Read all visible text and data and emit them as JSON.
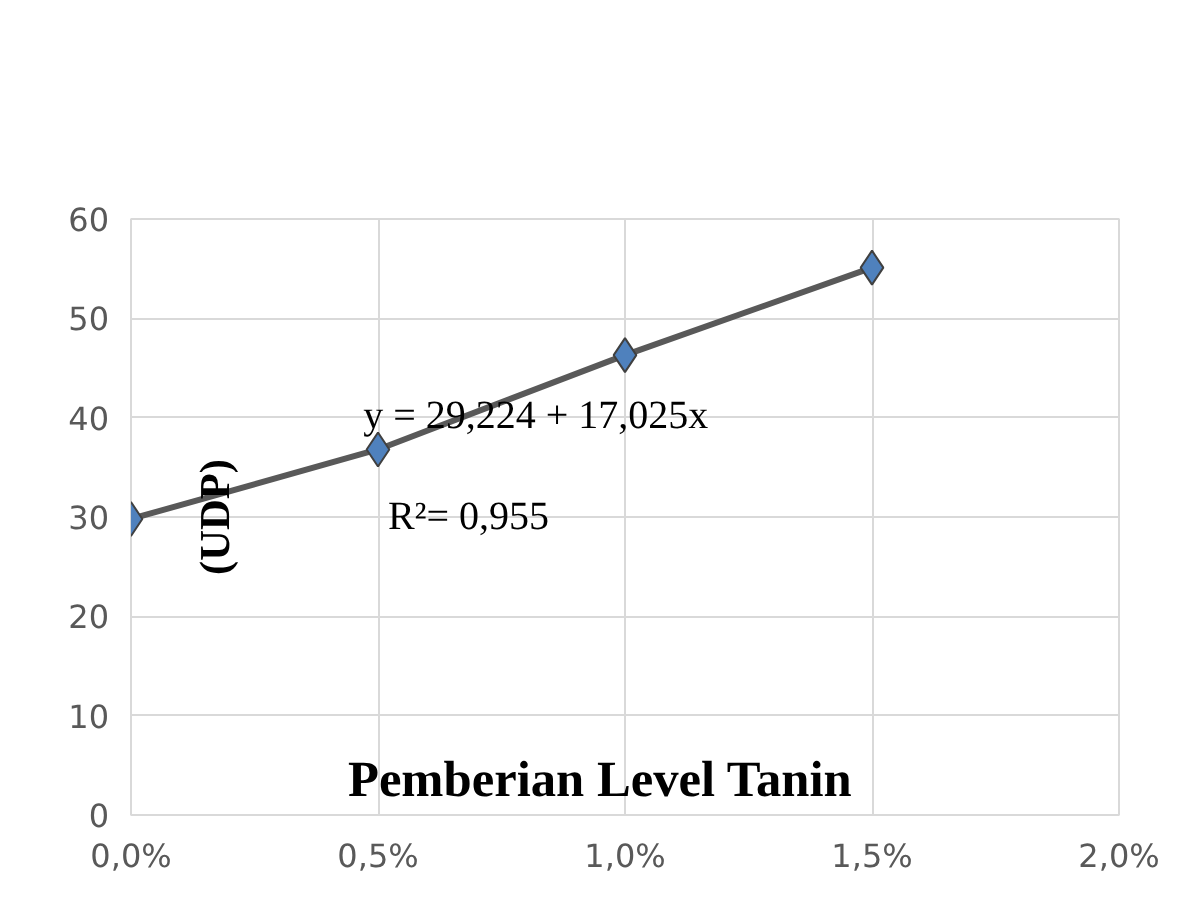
{
  "chart_data": {
    "type": "line",
    "xlabel": "Pemberian Level Tanin",
    "ylabel": "(UDP)",
    "x": [
      0,
      0.005,
      0.01,
      0.015
    ],
    "series": [
      {
        "color": "#4f81bd",
        "values": [
          29.8,
          36.8,
          46.3,
          55.1
        ]
      }
    ],
    "xlim": [
      0,
      0.02
    ],
    "xticks": [
      {
        "value": 0,
        "label": "0,0%"
      },
      {
        "value": 0.005,
        "label": "0,5%"
      },
      {
        "value": 0.01,
        "label": "1,0%"
      },
      {
        "value": 0.015,
        "label": "1,5%"
      },
      {
        "value": 0.02,
        "label": "2,0%"
      }
    ],
    "ylim": [
      0,
      60
    ],
    "yticks": [
      0,
      10,
      20,
      30,
      40,
      50,
      60
    ],
    "grid": true,
    "marker": "diamond",
    "line_style": "solid",
    "annotations": [
      "y = 29,224 + 17,025x",
      "R²= 0,955"
    ]
  }
}
